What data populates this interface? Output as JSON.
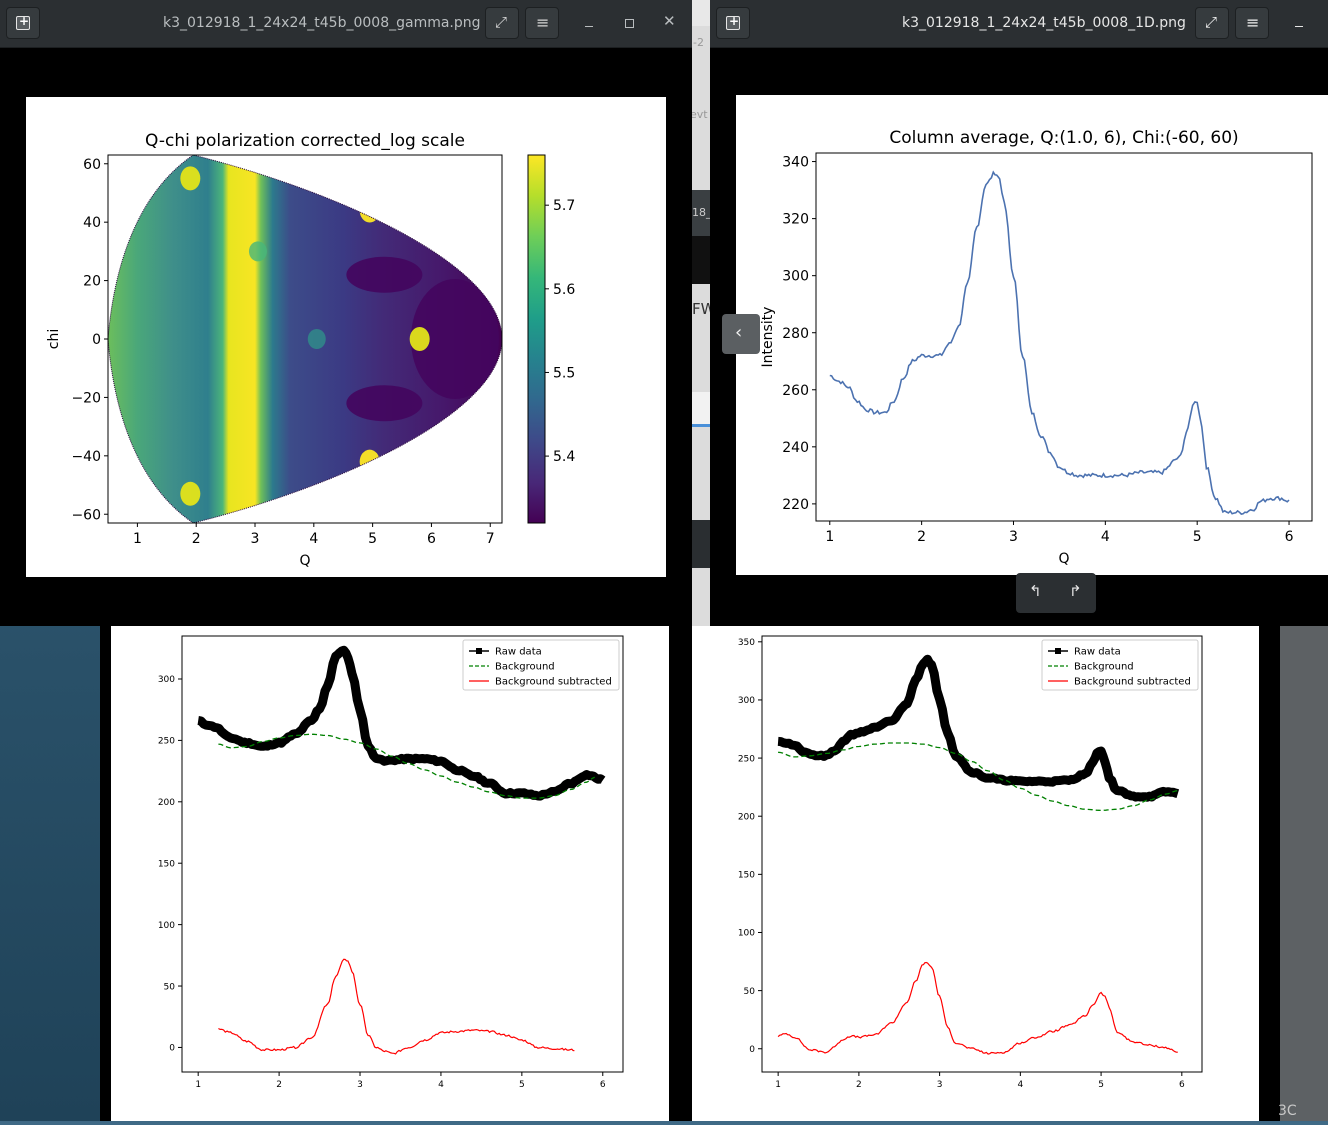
{
  "windows": {
    "left_viewer": {
      "title": "k3_012918_1_24x24_t45b_0008_gamma.png",
      "icons": [
        "new-window-icon",
        "fullscreen-icon",
        "menu-icon",
        "minimize-icon",
        "maximize-icon",
        "close-icon"
      ]
    },
    "right_viewer": {
      "title": "k3_012918_1_24x24_t45b_0008_1D.png",
      "icons": [
        "new-window-icon",
        "fullscreen-icon",
        "menu-icon",
        "minimize-icon",
        "prev-image-icon",
        "rotate-left-icon",
        "rotate-right-icon"
      ]
    }
  },
  "background_fragments": [
    "-2",
    "evt",
    "18_",
    "FW",
    "3C"
  ],
  "plots": {
    "qchi": {
      "title": "Q-chi polarization corrected_log scale",
      "xlabel": "Q",
      "ylabel": "chi",
      "xticks": [
        "1",
        "2",
        "3",
        "4",
        "5",
        "6",
        "7"
      ],
      "yticks": [
        "60",
        "40",
        "20",
        "0",
        "−20",
        "−40",
        "−60"
      ],
      "colorbar_ticks": [
        "5.7",
        "5.6",
        "5.5",
        "5.4"
      ]
    },
    "column_avg": {
      "title": "Column average, Q:(1.0, 6), Chi:(-60, 60)",
      "xlabel": "Q",
      "ylabel": "Intensity",
      "xticks": [
        "1",
        "2",
        "3",
        "4",
        "5",
        "6"
      ],
      "yticks": [
        "340",
        "320",
        "300",
        "280",
        "260",
        "240",
        "220"
      ]
    },
    "bgsub_left": {
      "legend": [
        "Raw data",
        "Background",
        "Background subtracted"
      ],
      "xticks": [
        "1",
        "2",
        "3",
        "4",
        "5",
        "6"
      ],
      "yticks": [
        "300",
        "250",
        "200",
        "150",
        "100",
        "50",
        "0"
      ]
    },
    "bgsub_right": {
      "legend": [
        "Raw data",
        "Background",
        "Background subtracted"
      ],
      "xticks": [
        "1",
        "2",
        "3",
        "4",
        "5",
        "6"
      ],
      "yticks": [
        "350",
        "300",
        "250",
        "200",
        "150",
        "100",
        "50",
        "0"
      ]
    }
  },
  "chart_data": [
    {
      "type": "heatmap",
      "title": "Q-chi polarization corrected_log scale",
      "xlabel": "Q",
      "ylabel": "chi",
      "xlim": [
        0.5,
        7.2
      ],
      "ylim": [
        -63,
        63
      ],
      "colorbar": {
        "min": 5.32,
        "max": 5.76,
        "ticks": [
          5.4,
          5.5,
          5.6,
          5.7
        ],
        "colormap": "viridis"
      },
      "features": [
        {
          "q": 2.8,
          "chi": "all",
          "kind": "vertical band",
          "level": 5.76
        },
        {
          "q": 1.9,
          "chi": 55,
          "level": 5.7
        },
        {
          "q": 1.9,
          "chi": -53,
          "level": 5.7
        },
        {
          "q": 4.95,
          "chi": 44,
          "level": 5.75
        },
        {
          "q": 4.95,
          "chi": -42,
          "level": 5.75
        },
        {
          "q": 5.8,
          "chi": 0,
          "level": 5.7
        },
        {
          "q": 3.05,
          "chi": 30,
          "level": 5.55
        },
        {
          "q": 4.05,
          "chi": 0,
          "level": 5.5
        }
      ]
    },
    {
      "type": "line",
      "title": "Column average, Q:(1.0, 6), Chi:(-60, 60)",
      "xlabel": "Q",
      "ylabel": "Intensity",
      "xlim": [
        0.85,
        6.25
      ],
      "ylim": [
        214,
        343
      ],
      "series": [
        {
          "x": [
            1.0,
            1.1,
            1.2,
            1.3,
            1.4,
            1.5,
            1.6,
            1.7,
            1.8,
            1.9,
            2.0,
            2.1,
            2.2,
            2.3,
            2.4,
            2.5,
            2.6,
            2.7,
            2.8,
            2.85,
            2.9,
            3.0,
            3.1,
            3.2,
            3.3,
            3.4,
            3.5,
            3.6,
            3.7,
            3.8,
            3.9,
            4.0,
            4.2,
            4.4,
            4.6,
            4.8,
            4.9,
            4.95,
            5.0,
            5.05,
            5.1,
            5.2,
            5.3,
            5.4,
            5.5,
            5.6,
            5.7,
            5.8,
            5.9,
            6.0
          ],
          "y": [
            265,
            263,
            261,
            256,
            253,
            252,
            252,
            256,
            264,
            270,
            272,
            272,
            272,
            276,
            282,
            297,
            317,
            332,
            336,
            334,
            325,
            300,
            272,
            252,
            244,
            238,
            233,
            231,
            230,
            230,
            230,
            230,
            230,
            231,
            231,
            236,
            246,
            255,
            256,
            247,
            233,
            222,
            217,
            217,
            217,
            218,
            221,
            222,
            222,
            221
          ],
          "color": "#4c72b0"
        }
      ]
    },
    {
      "type": "line",
      "xlim": [
        0.8,
        6.25
      ],
      "ylim": [
        -20,
        335
      ],
      "series": [
        {
          "name": "Raw data",
          "x": [
            1.0,
            1.1,
            1.2,
            1.4,
            1.6,
            1.8,
            2.0,
            2.2,
            2.4,
            2.5,
            2.6,
            2.7,
            2.75,
            2.8,
            2.85,
            2.9,
            3.0,
            3.1,
            3.2,
            3.3,
            3.4,
            3.6,
            3.8,
            4.0,
            4.2,
            4.4,
            4.6,
            4.8,
            5.0,
            5.2,
            5.4,
            5.6,
            5.8,
            6.0
          ],
          "y": [
            266,
            263,
            261,
            252,
            248,
            245,
            248,
            255,
            266,
            276,
            295,
            318,
            322,
            323,
            318,
            305,
            275,
            245,
            236,
            233,
            234,
            235,
            235,
            233,
            226,
            221,
            215,
            207,
            207,
            205,
            208,
            215,
            222,
            218
          ],
          "color": "#000000"
        },
        {
          "name": "Background",
          "x": [
            1.25,
            1.4,
            1.6,
            1.8,
            2.0,
            2.2,
            2.4,
            2.6,
            2.8,
            3.0,
            3.2,
            3.4,
            3.6,
            3.8,
            4.0,
            4.2,
            4.4,
            4.6,
            4.8,
            5.0,
            5.2,
            5.4,
            5.6,
            5.8,
            5.9
          ],
          "y": [
            247,
            244,
            245,
            249,
            252,
            254,
            255,
            254,
            251,
            248,
            243,
            237,
            231,
            226,
            221,
            216,
            212,
            208,
            205,
            203,
            203,
            205,
            210,
            216,
            220
          ],
          "color": "#008000"
        },
        {
          "name": "Background subtracted",
          "x": [
            1.25,
            1.4,
            1.6,
            1.8,
            2.0,
            2.2,
            2.4,
            2.6,
            2.7,
            2.8,
            2.85,
            2.9,
            3.0,
            3.1,
            3.2,
            3.3,
            3.4,
            3.6,
            3.8,
            4.0,
            4.2,
            4.4,
            4.6,
            4.8,
            5.0,
            5.2,
            5.4,
            5.6,
            5.65
          ],
          "y": [
            15,
            12,
            5,
            -2,
            -2,
            0,
            8,
            35,
            58,
            71,
            71,
            62,
            35,
            10,
            0,
            -3,
            -5,
            0,
            6,
            12,
            13,
            14,
            13,
            10,
            6,
            0,
            -1,
            -2,
            -2
          ],
          "color": "#ff0000"
        }
      ]
    },
    {
      "type": "line",
      "xlim": [
        0.8,
        6.25
      ],
      "ylim": [
        -20,
        355
      ],
      "series": [
        {
          "name": "Raw data",
          "x": [
            1.0,
            1.1,
            1.2,
            1.3,
            1.4,
            1.5,
            1.6,
            1.7,
            1.8,
            1.9,
            2.0,
            2.2,
            2.4,
            2.6,
            2.7,
            2.8,
            2.85,
            2.9,
            3.0,
            3.1,
            3.2,
            3.4,
            3.6,
            3.8,
            4.0,
            4.2,
            4.4,
            4.6,
            4.8,
            4.9,
            4.95,
            5.0,
            5.05,
            5.1,
            5.2,
            5.4,
            5.6,
            5.8,
            5.95
          ],
          "y": [
            265,
            263,
            261,
            256,
            253,
            252,
            252,
            256,
            264,
            270,
            272,
            276,
            282,
            297,
            317,
            332,
            335,
            330,
            300,
            272,
            252,
            238,
            233,
            231,
            230,
            230,
            230,
            231,
            236,
            246,
            255,
            256,
            247,
            233,
            222,
            217,
            217,
            221,
            220
          ],
          "color": "#000000"
        },
        {
          "name": "Background",
          "x": [
            1.0,
            1.2,
            1.4,
            1.6,
            1.8,
            2.0,
            2.2,
            2.4,
            2.6,
            2.8,
            3.0,
            3.2,
            3.4,
            3.6,
            3.8,
            4.0,
            4.2,
            4.4,
            4.6,
            4.8,
            5.0,
            5.2,
            5.4,
            5.6,
            5.8,
            5.95
          ],
          "y": [
            255,
            251,
            252,
            254,
            257,
            260,
            262,
            263,
            263,
            262,
            259,
            254,
            247,
            239,
            231,
            224,
            218,
            213,
            209,
            206,
            205,
            206,
            209,
            214,
            219,
            222
          ],
          "color": "#008000"
        },
        {
          "name": "Background subtracted",
          "x": [
            1.0,
            1.1,
            1.2,
            1.4,
            1.6,
            1.7,
            1.8,
            1.9,
            2.0,
            2.2,
            2.4,
            2.6,
            2.7,
            2.8,
            2.85,
            2.9,
            3.0,
            3.1,
            3.2,
            3.4,
            3.6,
            3.8,
            4.0,
            4.2,
            4.4,
            4.6,
            4.8,
            4.9,
            5.0,
            5.05,
            5.1,
            5.2,
            5.4,
            5.6,
            5.8,
            5.95
          ],
          "y": [
            11,
            13,
            10,
            -1,
            -3,
            2,
            8,
            11,
            10,
            12,
            22,
            40,
            58,
            73,
            74,
            70,
            45,
            18,
            5,
            0,
            -4,
            -3,
            5,
            10,
            15,
            20,
            28,
            38,
            48,
            45,
            35,
            14,
            6,
            3,
            1,
            -3
          ],
          "color": "#ff0000"
        }
      ]
    }
  ]
}
